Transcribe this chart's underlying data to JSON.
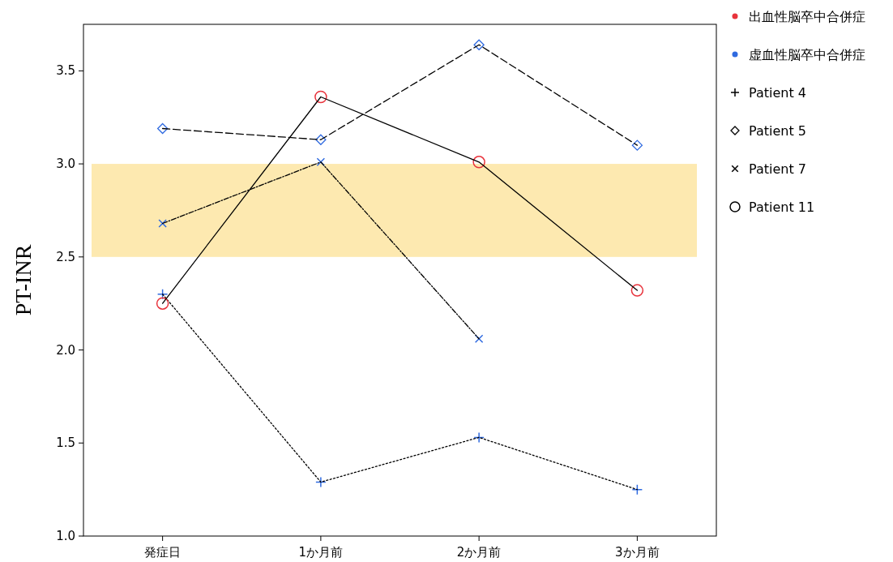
{
  "chart_data": {
    "type": "line",
    "ylabel": "PT-INR",
    "categories": [
      "発症日",
      "1か月前",
      "2か月前",
      "3か月前"
    ],
    "ylim": [
      1.0,
      3.75
    ],
    "yticks": [
      {
        "value": 1.0,
        "label": "1.0"
      },
      {
        "value": 1.5,
        "label": "1.5"
      },
      {
        "value": 2.0,
        "label": "2.0"
      },
      {
        "value": 2.5,
        "label": "2.5"
      },
      {
        "value": 3.0,
        "label": "3.0"
      },
      {
        "value": 3.5,
        "label": "3.5"
      }
    ],
    "bands": [
      {
        "axis": "y",
        "from": 2.5,
        "to": 3.0,
        "color": "#fde9b0"
      }
    ],
    "series": [
      {
        "name": "出血性脳卒中合併症",
        "type": "scatter",
        "marker": "circle",
        "color": "#e8333c",
        "values": [
          null,
          null,
          null,
          null
        ]
      },
      {
        "name": "虚血性脳卒中合併症",
        "type": "scatter",
        "marker": "circle",
        "color": "#2f6ae0",
        "values": [
          null,
          null,
          null,
          null
        ]
      },
      {
        "name": "Patient 4",
        "marker": "cross",
        "line_style": "dotted",
        "color": "#2f6ae0",
        "values": [
          2.3,
          1.29,
          1.53,
          1.25
        ]
      },
      {
        "name": "Patient 5",
        "marker": "diamond",
        "line_style": "dashed",
        "color": "#2f6ae0",
        "values": [
          3.19,
          3.13,
          3.64,
          3.1
        ]
      },
      {
        "name": "Patient 7",
        "marker": "x",
        "line_style": "dashdot",
        "color": "#2f6ae0",
        "values": [
          2.68,
          3.01,
          2.06,
          null
        ]
      },
      {
        "name": "Patient 11",
        "marker": "circle_open",
        "line_style": "solid",
        "color": "#e8333c",
        "values": [
          2.25,
          3.36,
          3.01,
          2.32
        ]
      }
    ],
    "legend": "right",
    "grid": false
  }
}
